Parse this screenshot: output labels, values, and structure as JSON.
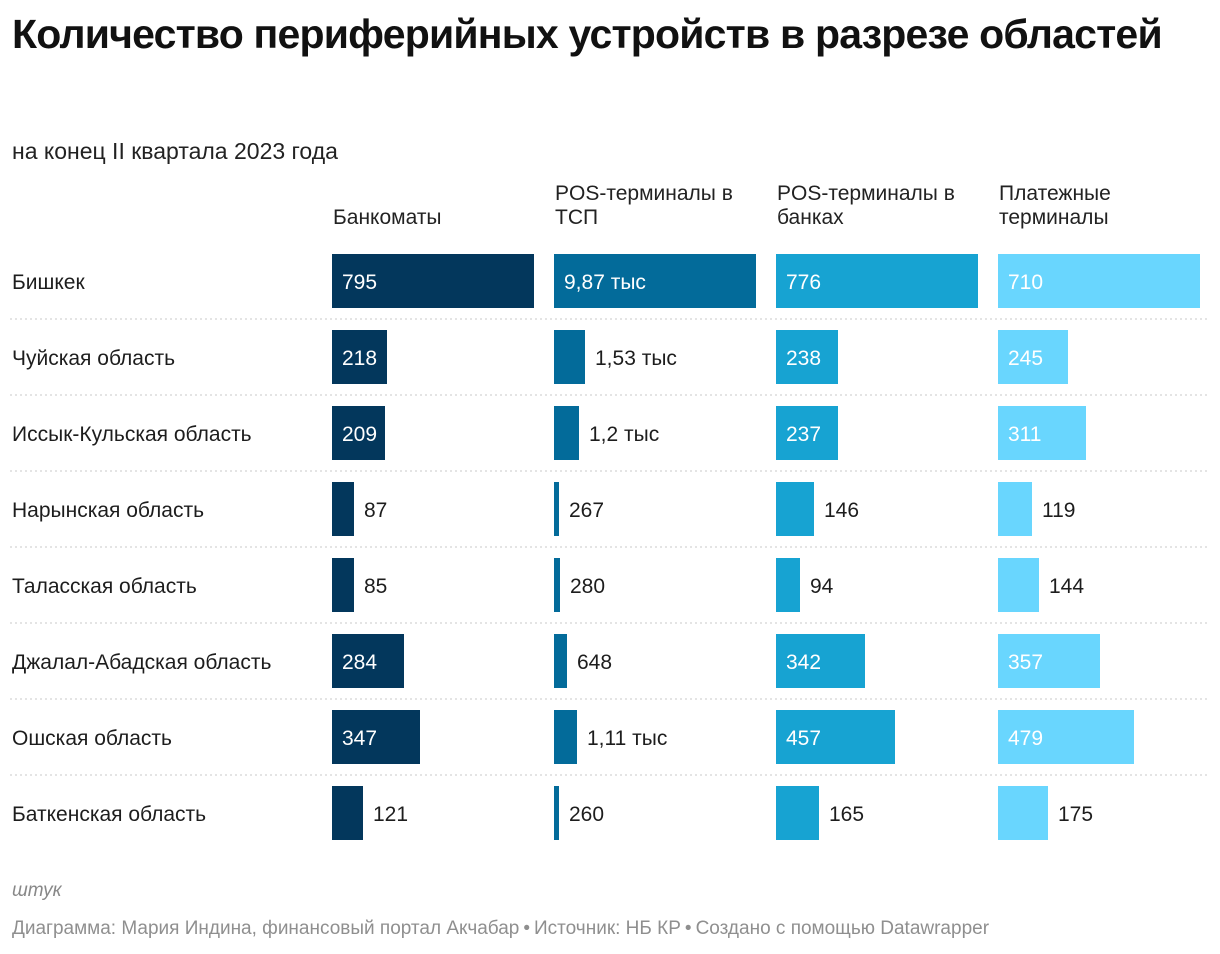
{
  "header": {
    "title": "Количество периферийных устройств в разрезе областей",
    "subtitle": "на конец II квартала 2023 года"
  },
  "chart_data": {
    "type": "bar",
    "orientation": "horizontal",
    "layout": "small-multiples",
    "title": "Количество периферийных устройств в разрезе областей",
    "subtitle": "на конец II квартала 2023 года",
    "unit": "штук",
    "categories": [
      "Бишкек",
      "Чуйская область",
      "Иссык-Кульская область",
      "Нарынская область",
      "Таласская область",
      "Джалал-Абадская область",
      "Ошская область",
      "Баткенская область"
    ],
    "series": [
      {
        "name": "Банкоматы",
        "header_lines": [
          "Банкоматы"
        ],
        "color": "#03375c",
        "values": [
          795,
          218,
          209,
          87,
          85,
          284,
          347,
          121
        ],
        "labels": [
          "795",
          "218",
          "209",
          "87",
          "85",
          "284",
          "347",
          "121"
        ],
        "max": 795
      },
      {
        "name": "POS-терминалы в ТСП",
        "header_lines": [
          "POS-терминалы в",
          "ТСП"
        ],
        "color": "#036b9a",
        "values": [
          9870,
          1530,
          1200,
          267,
          280,
          648,
          1110,
          260
        ],
        "labels": [
          "9,87 тыс",
          "1,53 тыс",
          "1,2 тыс",
          "267",
          "280",
          "648",
          "1,11 тыс",
          "260"
        ],
        "max": 9870
      },
      {
        "name": "POS-терминалы в банках",
        "header_lines": [
          "POS-терминалы в",
          "банках"
        ],
        "color": "#17a3d2",
        "values": [
          776,
          238,
          237,
          146,
          94,
          342,
          457,
          165
        ],
        "labels": [
          "776",
          "238",
          "237",
          "146",
          "94",
          "342",
          "457",
          "165"
        ],
        "max": 776
      },
      {
        "name": "Платежные терминалы",
        "header_lines": [
          "Платежные",
          "терминалы"
        ],
        "color": "#69d6fe",
        "values": [
          710,
          245,
          311,
          119,
          144,
          357,
          479,
          175
        ],
        "labels": [
          "710",
          "245",
          "311",
          "119",
          "144",
          "357",
          "479",
          "175"
        ],
        "max": 710
      }
    ]
  },
  "footer": {
    "unit": "штук",
    "credit_author": "Диаграмма: Мария Индина, финансовый портал Акчабар",
    "separator": "•",
    "credit_source": "Источник: НБ КР",
    "credit_tool": "Создано с помощью Datawrapper"
  }
}
